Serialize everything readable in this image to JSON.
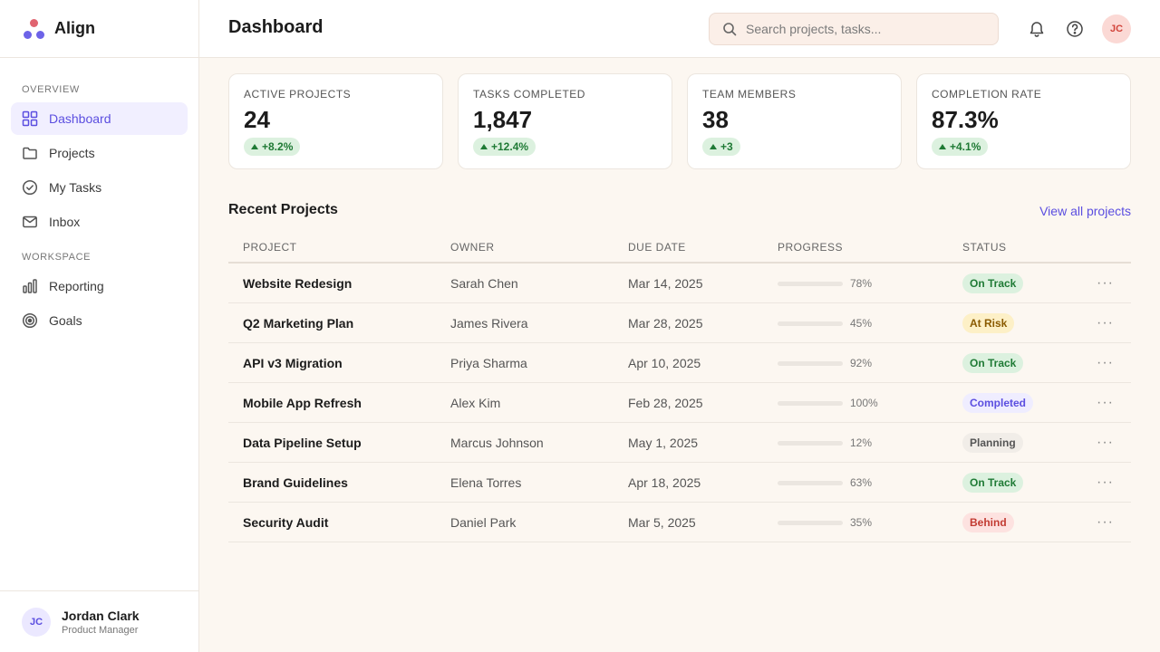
{
  "app": {
    "name": "Align"
  },
  "sidebar": {
    "sections": [
      {
        "label": "OVERVIEW",
        "items": [
          {
            "label": "Dashboard",
            "icon": "grid-icon",
            "active": true
          },
          {
            "label": "Projects",
            "icon": "folder-icon"
          },
          {
            "label": "My Tasks",
            "icon": "check-circle-icon"
          },
          {
            "label": "Inbox",
            "icon": "mail-icon"
          }
        ]
      },
      {
        "label": "WORKSPACE",
        "items": [
          {
            "label": "Reporting",
            "icon": "bar-chart-icon"
          },
          {
            "label": "Goals",
            "icon": "target-icon"
          }
        ]
      }
    ],
    "user": {
      "initials": "JC",
      "name": "Jordan Clark",
      "role": "Product Manager"
    }
  },
  "header": {
    "title": "Dashboard",
    "search_placeholder": "Search projects, tasks...",
    "avatar_initials": "JC"
  },
  "stats": [
    {
      "label": "ACTIVE PROJECTS",
      "value": "24",
      "delta": "+8.2%"
    },
    {
      "label": "TASKS COMPLETED",
      "value": "1,847",
      "delta": "+12.4%"
    },
    {
      "label": "TEAM MEMBERS",
      "value": "38",
      "delta": "+3"
    },
    {
      "label": "COMPLETION RATE",
      "value": "87.3%",
      "delta": "+4.1%"
    }
  ],
  "recent": {
    "title": "Recent Projects",
    "view_all": "View all projects",
    "columns": [
      "PROJECT",
      "OWNER",
      "DUE DATE",
      "PROGRESS",
      "STATUS"
    ],
    "rows": [
      {
        "project": "Website Redesign",
        "owner": "Sarah Chen",
        "due": "Mar 14, 2025",
        "progress": 78,
        "progress_label": "78%",
        "status": "On Track",
        "status_kind": "ontrack"
      },
      {
        "project": "Q2 Marketing Plan",
        "owner": "James Rivera",
        "due": "Mar 28, 2025",
        "progress": 45,
        "progress_label": "45%",
        "status": "At Risk",
        "status_kind": "atrisk"
      },
      {
        "project": "API v3 Migration",
        "owner": "Priya Sharma",
        "due": "Apr 10, 2025",
        "progress": 92,
        "progress_label": "92%",
        "status": "On Track",
        "status_kind": "ontrack"
      },
      {
        "project": "Mobile App Refresh",
        "owner": "Alex Kim",
        "due": "Feb 28, 2025",
        "progress": 100,
        "progress_label": "100%",
        "status": "Completed",
        "status_kind": "completed"
      },
      {
        "project": "Data Pipeline Setup",
        "owner": "Marcus Johnson",
        "due": "May 1, 2025",
        "progress": 12,
        "progress_label": "12%",
        "status": "Planning",
        "status_kind": "planning"
      },
      {
        "project": "Brand Guidelines",
        "owner": "Elena Torres",
        "due": "Apr 18, 2025",
        "progress": 63,
        "progress_label": "63%",
        "status": "On Track",
        "status_kind": "ontrack"
      },
      {
        "project": "Security Audit",
        "owner": "Daniel Park",
        "due": "Mar 5, 2025",
        "progress": 35,
        "progress_label": "35%",
        "status": "Behind",
        "status_kind": "behind"
      }
    ],
    "row_action_icon": "more-horizontal-icon"
  },
  "colors": {
    "accent": "#5b4ee0",
    "progress": "#7b6cf0",
    "progress_done": "#1f7a35",
    "background": "#fcf7f1"
  }
}
